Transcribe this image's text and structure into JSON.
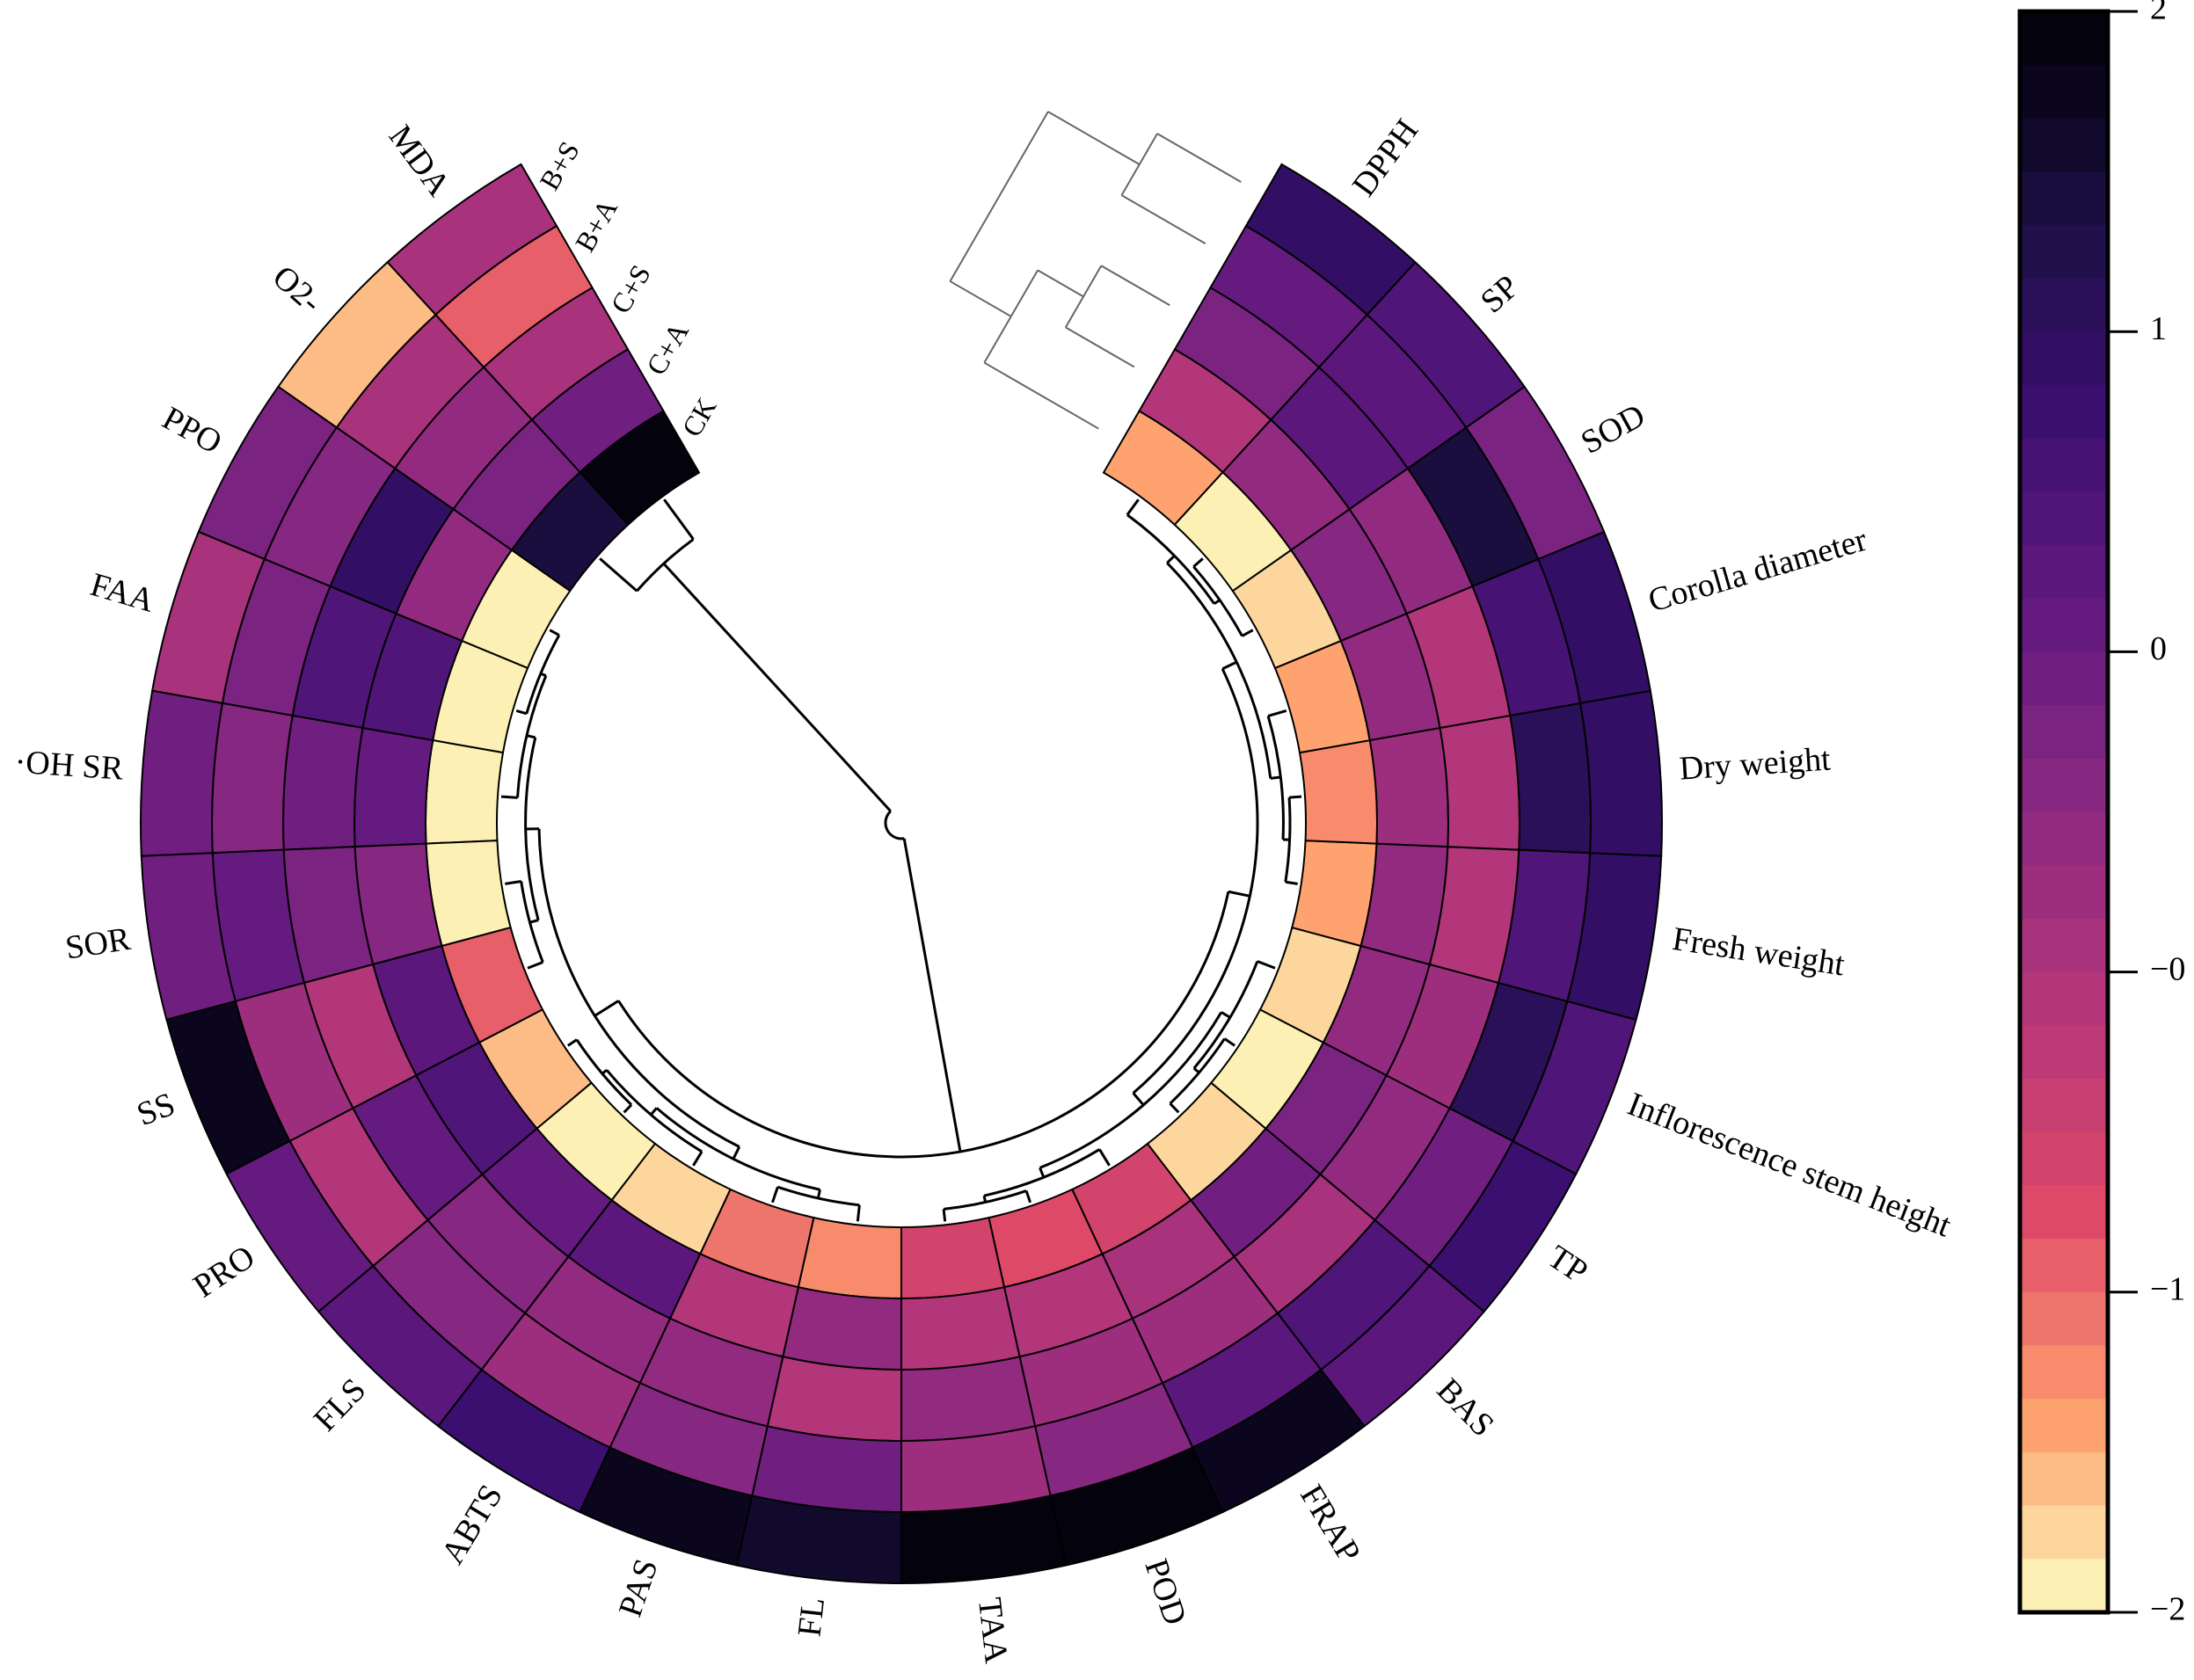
{
  "chart_data": {
    "type": "heatmap",
    "layout": "circular",
    "title": "",
    "treatments": [
      "CK",
      "C+A",
      "C+S",
      "B+A",
      "B+S"
    ],
    "variables": [
      "MDA",
      "O2-",
      "PPO",
      "FAA",
      "·OH SR",
      "SOR",
      "SS",
      "PRO",
      "FLS",
      "ABTS",
      "PAS",
      "FL",
      "TAA",
      "POD",
      "FRAP",
      "BAS",
      "TP",
      "Inflorescence stem height",
      "Fresh weight",
      "Dry weight",
      "Corolla diameter",
      "SOD",
      "SP",
      "DPPH"
    ],
    "values_note": "rows = variables, columns = treatments in order CK, C+A, C+S, B+A, B+S (inner to outer ring)",
    "values": [
      [
        2.0,
        0.3,
        -0.3,
        -1.1,
        -0.3
      ],
      [
        1.5,
        0.2,
        0.0,
        -0.3,
        -1.7
      ],
      [
        -1.9,
        -0.1,
        1.2,
        0.1,
        0.2
      ],
      [
        -1.9,
        0.7,
        0.8,
        0.2,
        -0.3
      ],
      [
        -2.0,
        0.5,
        0.4,
        0.1,
        0.3
      ],
      [
        -2.0,
        0.1,
        0.2,
        0.5,
        0.3
      ],
      [
        -1.1,
        0.6,
        -0.5,
        -0.2,
        1.8
      ],
      [
        -1.6,
        0.8,
        0.5,
        -0.5,
        0.5
      ],
      [
        -1.9,
        0.5,
        0.1,
        0.1,
        0.6
      ],
      [
        -1.8,
        0.6,
        -0.1,
        -0.2,
        1.0
      ],
      [
        -1.3,
        -0.4,
        0.0,
        0.1,
        1.8
      ],
      [
        -1.4,
        -0.1,
        -0.4,
        0.3,
        1.6
      ],
      [
        -0.8,
        -0.5,
        -0.1,
        -0.2,
        2.0
      ],
      [
        -1.0,
        -0.5,
        -0.2,
        0.1,
        1.9
      ],
      [
        -0.8,
        -0.3,
        -0.2,
        0.6,
        1.8
      ],
      [
        -1.8,
        0.4,
        -0.3,
        0.8,
        0.6
      ],
      [
        -1.9,
        0.2,
        0.0,
        0.4,
        1.0
      ],
      [
        -1.8,
        -0.1,
        -0.2,
        1.3,
        0.7
      ],
      [
        -1.5,
        -0.1,
        -0.5,
        0.8,
        1.2
      ],
      [
        -1.4,
        -0.2,
        -0.5,
        1.3,
        1.2
      ],
      [
        -1.5,
        -0.1,
        -0.4,
        0.9,
        1.2
      ],
      [
        -1.8,
        0.1,
        -0.1,
        1.5,
        0.2
      ],
      [
        -2.0,
        -0.1,
        0.6,
        0.6,
        0.8
      ],
      [
        -1.5,
        -0.5,
        0.2,
        0.5,
        1.1
      ]
    ],
    "colorbar": {
      "range": [
        -2,
        2
      ],
      "colormap": "magma (reversed)",
      "bands": 30,
      "tick_labels": [
        "2",
        "1",
        "0",
        "−0",
        "−1",
        "−2"
      ]
    },
    "dendrograms": [
      "variables (inner)",
      "treatments (top, gray)"
    ],
    "legend_position": "right"
  }
}
